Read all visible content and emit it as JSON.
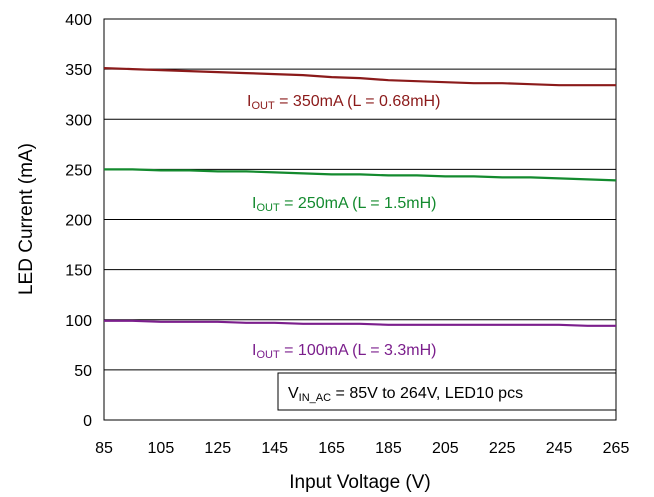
{
  "chart_data": {
    "type": "line",
    "xlabel": "Input Voltage (V)",
    "ylabel": "LED Current (mA)",
    "xlim": [
      85,
      265
    ],
    "ylim": [
      0,
      400
    ],
    "xticks": [
      85,
      105,
      125,
      145,
      165,
      185,
      205,
      225,
      245,
      265
    ],
    "yticks": [
      0,
      50,
      100,
      150,
      200,
      250,
      300,
      350,
      400
    ],
    "grid": "horizontal",
    "series": [
      {
        "label": {
          "main": "I",
          "sub": "OUT",
          "rest": " = 350mA (L = 0.68mH)"
        },
        "color": "#8B1A1A",
        "x": [
          85,
          95,
          105,
          115,
          125,
          135,
          145,
          155,
          165,
          175,
          185,
          195,
          205,
          215,
          225,
          235,
          245,
          255,
          265
        ],
        "y": [
          351,
          350,
          349,
          348,
          347,
          346,
          345,
          344,
          342,
          341,
          339,
          338,
          337,
          336,
          336,
          335,
          334,
          334,
          334
        ]
      },
      {
        "label": {
          "main": "I",
          "sub": "OUT",
          "rest": " = 250mA (L = 1.5mH)"
        },
        "color": "#138A2E",
        "x": [
          85,
          95,
          105,
          115,
          125,
          135,
          145,
          155,
          165,
          175,
          185,
          195,
          205,
          215,
          225,
          235,
          245,
          255,
          265
        ],
        "y": [
          250,
          250,
          249,
          249,
          248,
          248,
          247,
          246,
          245,
          245,
          244,
          244,
          243,
          243,
          242,
          242,
          241,
          240,
          239
        ]
      },
      {
        "label": {
          "main": "I",
          "sub": "OUT",
          "rest": " = 100mA (L = 3.3mH)"
        },
        "color": "#7B1E8C",
        "x": [
          85,
          95,
          105,
          115,
          125,
          135,
          145,
          155,
          165,
          175,
          185,
          195,
          205,
          215,
          225,
          235,
          245,
          255,
          265
        ],
        "y": [
          99,
          99,
          98,
          98,
          98,
          97,
          97,
          96,
          96,
          96,
          95,
          95,
          95,
          95,
          95,
          95,
          95,
          94,
          94
        ]
      }
    ],
    "annotation": {
      "main": "V",
      "sub": "IN_AC",
      "rest": " = 85V to 264V, LED10 pcs"
    }
  }
}
